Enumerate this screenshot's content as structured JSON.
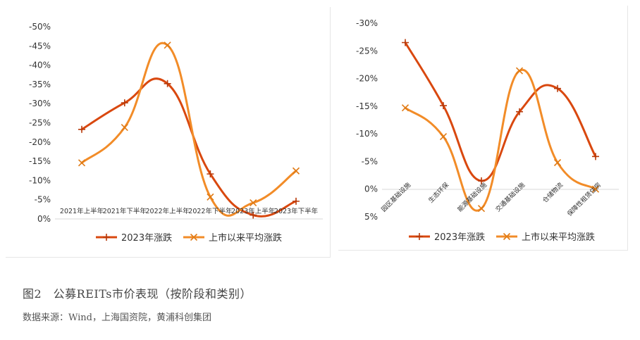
{
  "caption": "图2　公募REITs市价表现（按阶段和类别）",
  "source": "数据来源：Wind，上海国资院，黄浦科创集团",
  "colors": {
    "series1": "#d9480f",
    "series2": "#f28c28",
    "axis": "#d9d9d9",
    "text": "#333333"
  },
  "chart_data": [
    {
      "type": "line",
      "title": "",
      "categories": [
        "2021年上半年",
        "2021年下半年",
        "2022年上半年",
        "2022年下半年",
        "2023年上半年",
        "2023年下半年"
      ],
      "y_ticks": [
        "-50%",
        "-45%",
        "-40%",
        "-35%",
        "-30%",
        "-25%",
        "-20%",
        "-15%",
        "-10%",
        "-5%",
        "0%"
      ],
      "ylim": [
        0,
        50
      ],
      "series": [
        {
          "name": "2023年涨跌",
          "values": [
            23.3,
            30.2,
            35.2,
            11.7,
            1.0,
            4.6
          ]
        },
        {
          "name": "上市以来平均涨跌",
          "values": [
            14.6,
            23.8,
            45.2,
            5.7,
            4.2,
            12.5
          ]
        }
      ],
      "legend": "bottom",
      "grid": false
    },
    {
      "type": "line",
      "title": "",
      "categories": [
        "园区基础设施",
        "生态环保",
        "能源基础设施",
        "交通基础设施",
        "仓储物流",
        "保障性租赁住房"
      ],
      "y_ticks": [
        "-30%",
        "-25%",
        "-20%",
        "-15%",
        "-10%",
        "-5%",
        "0%",
        "5%"
      ],
      "ylim": [
        -5,
        30
      ],
      "series": [
        {
          "name": "2023年涨跌",
          "values": [
            26.5,
            15.1,
            1.5,
            14.0,
            18.2,
            5.9
          ]
        },
        {
          "name": "上市以来平均涨跌",
          "values": [
            14.7,
            9.5,
            -3.5,
            21.4,
            4.8,
            0.0
          ]
        }
      ],
      "legend": "bottom",
      "grid": false
    }
  ]
}
